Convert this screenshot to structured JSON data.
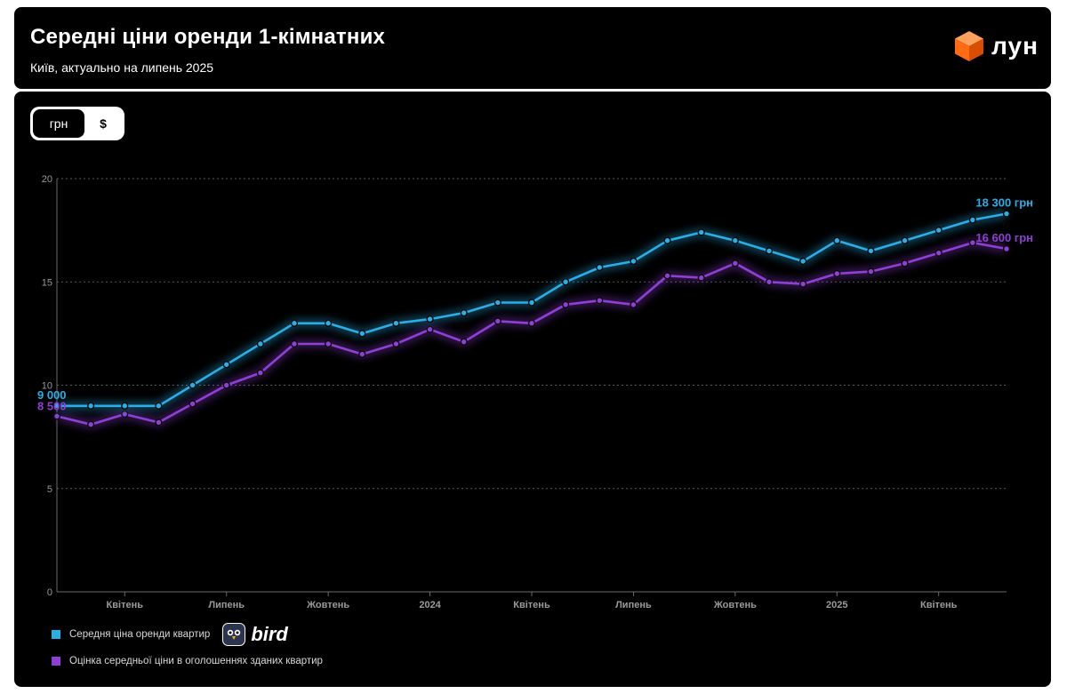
{
  "header": {
    "title": "Середні ціни оренди 1-кімнатних",
    "subtitle": "Київ, актуально на липень 2025",
    "logo_text": "лун"
  },
  "currency_toggle": {
    "options": [
      "грн",
      "$"
    ],
    "selected": "грн"
  },
  "legend": {
    "items": [
      "Середня ціна оренди квартир",
      "Оцінка середньої ціни в оголошеннях зданих квартир"
    ],
    "sponsor": "bird"
  },
  "colors": {
    "series1": "#2aaee8",
    "series2": "#8f3fd6",
    "orange": "#ff6a13"
  },
  "chart_data": {
    "type": "line",
    "ylim": [
      0,
      20
    ],
    "yticks": [
      0,
      5,
      10,
      15,
      20
    ],
    "xtick_labels": [
      "Квітень",
      "Липень",
      "Жовтень",
      "2024",
      "Квітень",
      "Липень",
      "Жовтень",
      "2025",
      "Квітень"
    ],
    "xtick_indices": [
      2,
      5,
      8,
      11,
      14,
      17,
      20,
      23,
      26
    ],
    "grid": true,
    "legend_position": "bottom-left",
    "series": [
      {
        "name": "Середня ціна оренди квартир",
        "color": "#2aaee8",
        "values": [
          9.0,
          9.0,
          9.0,
          9.0,
          10.0,
          11.0,
          12.0,
          13.0,
          13.0,
          12.5,
          13.0,
          13.2,
          13.5,
          14.0,
          14.0,
          15.0,
          15.7,
          16.0,
          17.0,
          17.4,
          17.0,
          16.5,
          16.0,
          17.0,
          16.5,
          17.0,
          17.5,
          18.0,
          18.3
        ],
        "start_label": "9 000",
        "end_label": "18 300 грн"
      },
      {
        "name": "Оцінка середньої ціни в оголошеннях зданих квартир",
        "color": "#8f3fd6",
        "values": [
          8.5,
          8.1,
          8.6,
          8.2,
          9.1,
          10.0,
          10.6,
          12.0,
          12.0,
          11.5,
          12.0,
          12.7,
          12.1,
          13.1,
          13.0,
          13.9,
          14.1,
          13.9,
          15.3,
          15.2,
          15.9,
          15.0,
          14.9,
          15.4,
          15.5,
          15.9,
          16.4,
          16.9,
          16.6
        ],
        "start_label": "8 500",
        "end_label": "16 600 грн"
      }
    ]
  }
}
